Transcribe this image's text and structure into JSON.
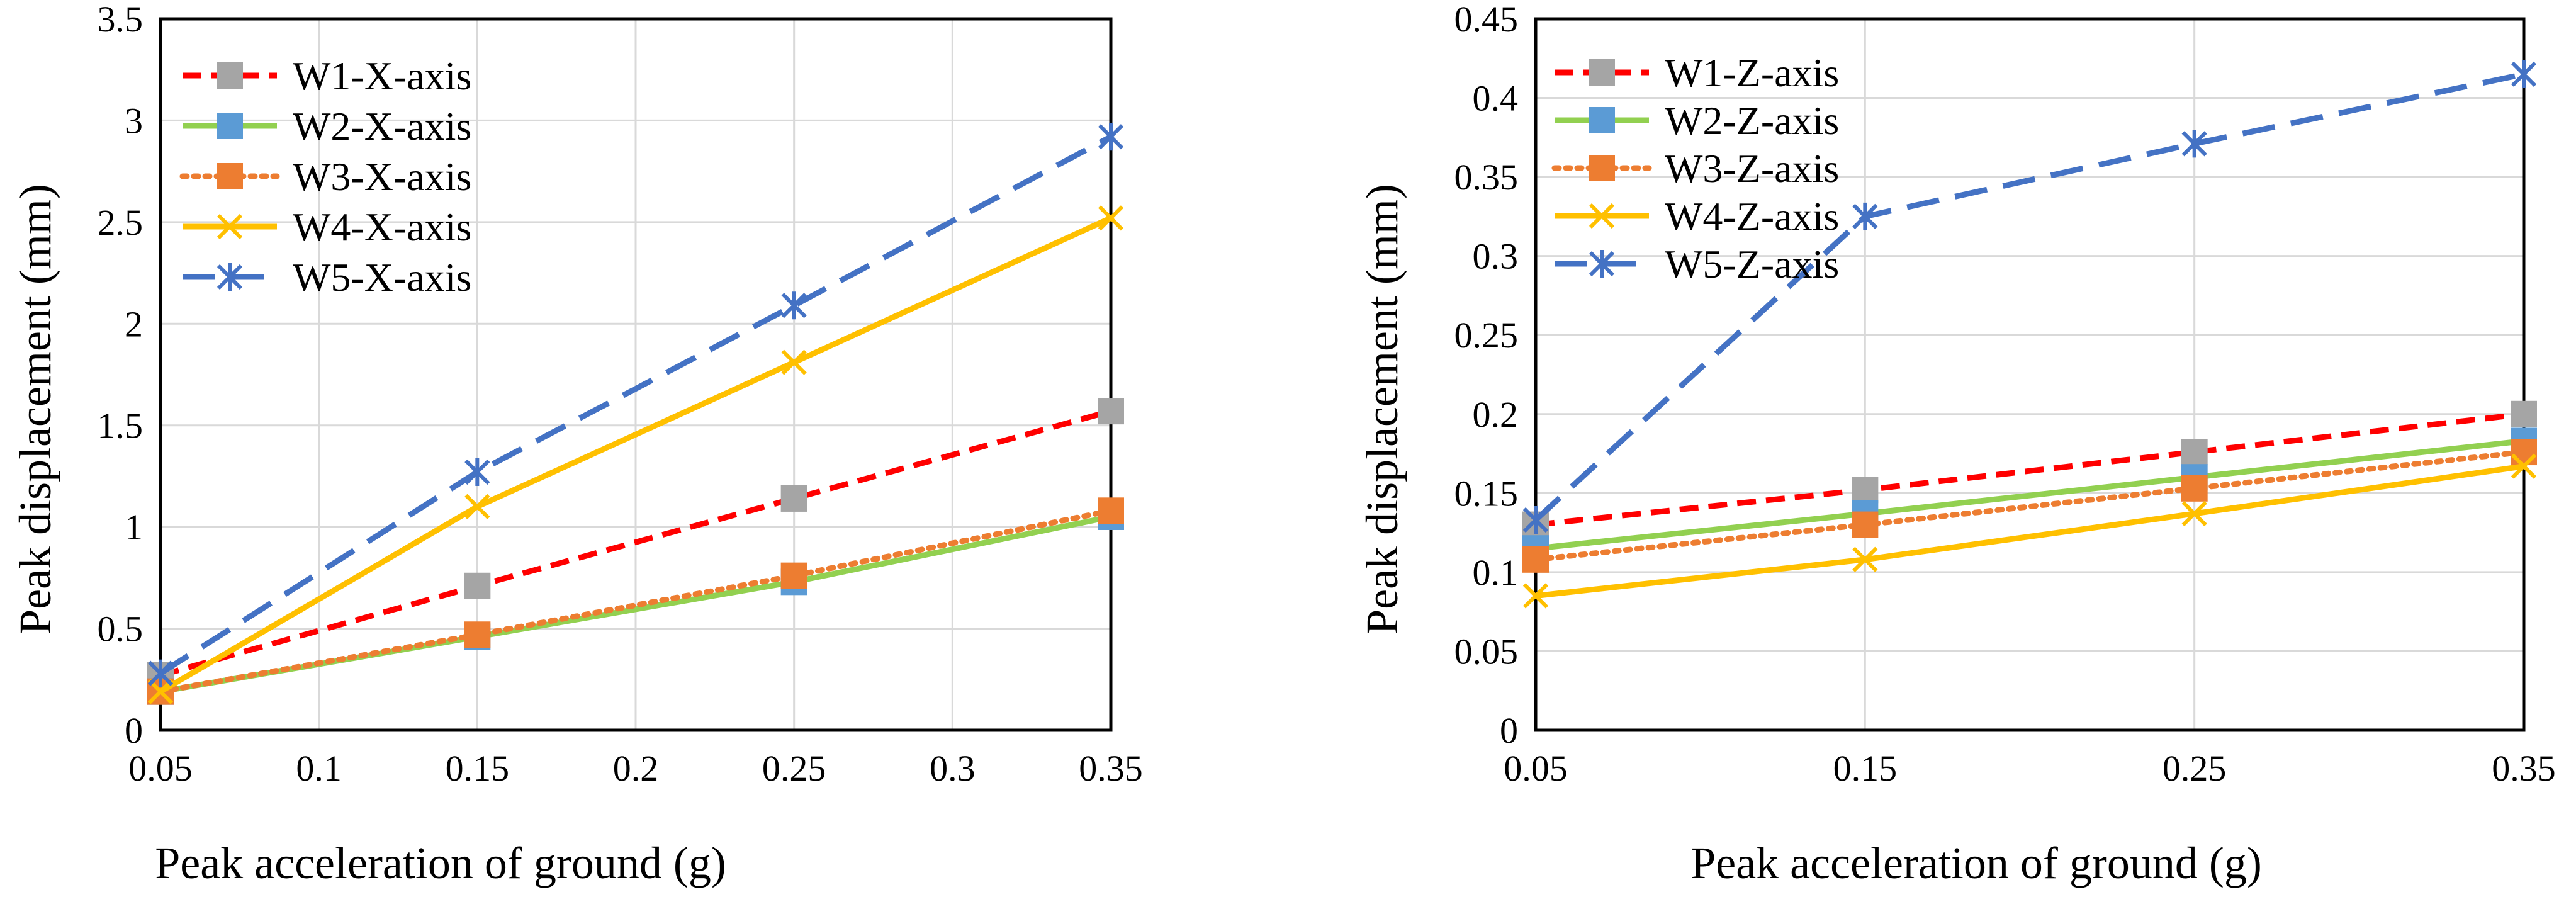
{
  "chart_data": [
    {
      "type": "line",
      "name": "x-axis-chart",
      "x_ticks": [
        "0.05",
        "0.1",
        "0.15",
        "0.2",
        "0.25",
        "0.3",
        "0.35"
      ],
      "y_ticks": [
        "0",
        "0.5",
        "1",
        "1.5",
        "2",
        "2.5",
        "3",
        "3.5"
      ],
      "xlim": [
        0.05,
        0.35
      ],
      "ylim": [
        0,
        3.5
      ],
      "xlabel": "Peak acceleration of ground (g)",
      "ylabel": "Peak displacement (mm)",
      "grid": true,
      "legend_position": "top-left",
      "x": [
        0.05,
        0.15,
        0.25,
        0.35
      ],
      "series": [
        {
          "name": "W1-X-axis",
          "color": "#ff0000",
          "marker_color": "#a5a5a5",
          "dash": "dashed",
          "marker": "square",
          "values": [
            0.27,
            0.71,
            1.14,
            1.57
          ]
        },
        {
          "name": "W2-X-axis",
          "color": "#92d050",
          "marker_color": "#5b9bd5",
          "dash": "solid",
          "marker": "square",
          "values": [
            0.19,
            0.46,
            0.73,
            1.05
          ]
        },
        {
          "name": "W3-X-axis",
          "color": "#ed7d31",
          "marker_color": "#ed7d31",
          "dash": "dotted",
          "marker": "square",
          "values": [
            0.19,
            0.47,
            0.76,
            1.08
          ]
        },
        {
          "name": "W4-X-axis",
          "color": "#ffc000",
          "marker_color": "#ffc000",
          "dash": "solid",
          "marker": "x",
          "values": [
            0.19,
            1.1,
            1.81,
            2.52
          ]
        },
        {
          "name": "W5-X-axis",
          "color": "#4472c4",
          "marker_color": "#4472c4",
          "dash": "longdash",
          "marker": "star",
          "values": [
            0.28,
            1.27,
            2.09,
            2.92
          ]
        }
      ]
    },
    {
      "type": "line",
      "name": "z-axis-chart",
      "x_ticks": [
        "0.05",
        "0.15",
        "0.25",
        "0.35"
      ],
      "y_ticks": [
        "0",
        "0.05",
        "0.1",
        "0.15",
        "0.2",
        "0.25",
        "0.3",
        "0.35",
        "0.4",
        "0.45"
      ],
      "xlim": [
        0.05,
        0.35
      ],
      "ylim": [
        0,
        0.45
      ],
      "xlabel": "Peak acceleration of ground (g)",
      "ylabel": "Peak displacement (mm)",
      "grid": true,
      "legend_position": "top-left",
      "x": [
        0.05,
        0.15,
        0.25,
        0.35
      ],
      "series": [
        {
          "name": "W1-Z-axis",
          "color": "#ff0000",
          "marker_color": "#a5a5a5",
          "dash": "dashed",
          "marker": "square",
          "values": [
            0.13,
            0.152,
            0.176,
            0.2
          ]
        },
        {
          "name": "W2-Z-axis",
          "color": "#92d050",
          "marker_color": "#5b9bd5",
          "dash": "solid",
          "marker": "square",
          "values": [
            0.115,
            0.137,
            0.16,
            0.183
          ]
        },
        {
          "name": "W3-Z-axis",
          "color": "#ed7d31",
          "marker_color": "#ed7d31",
          "dash": "dotted",
          "marker": "square",
          "values": [
            0.108,
            0.13,
            0.153,
            0.176
          ]
        },
        {
          "name": "W4-Z-axis",
          "color": "#ffc000",
          "marker_color": "#ffc000",
          "dash": "solid",
          "marker": "x",
          "values": [
            0.085,
            0.108,
            0.137,
            0.167
          ]
        },
        {
          "name": "W5-Z-axis",
          "color": "#4472c4",
          "marker_color": "#4472c4",
          "dash": "longdash",
          "marker": "star",
          "values": [
            0.133,
            0.325,
            0.371,
            0.415
          ]
        }
      ]
    }
  ]
}
